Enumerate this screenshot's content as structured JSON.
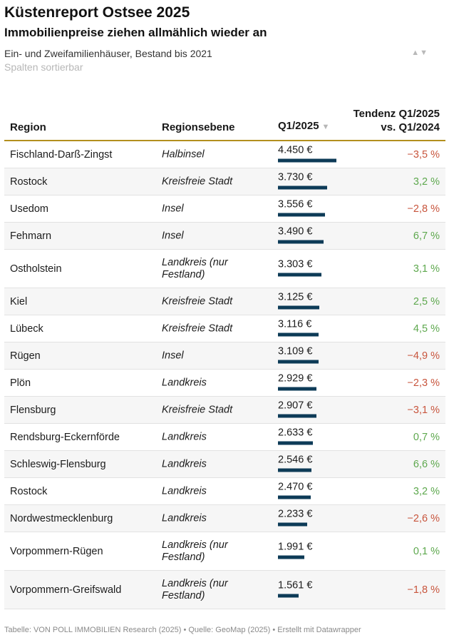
{
  "header": {
    "title": "Küstenreport Ostsee 2025",
    "subtitle": "Immobilienpreise ziehen allmählich wieder an",
    "description": "Ein- und Zweifamilienhäuser, Bestand bis 2021",
    "sort_note": "Spalten sortierbar",
    "sort_up_icon": "▲",
    "sort_down_icon": "▼"
  },
  "columns": {
    "region": "Region",
    "level": "Regionsebene",
    "q1": "Q1/2025",
    "q1_sort_icon": "▼",
    "trend": "Tendenz Q1/2025 vs. Q1/2024"
  },
  "colors": {
    "bar": "#0d3b57",
    "negative": "#c8553d",
    "positive": "#5ea84e",
    "header_rule": "#b38f1e"
  },
  "chart_data": {
    "type": "table",
    "value_max": 4450,
    "columns": [
      "Region",
      "Regionsebene",
      "Q1/2025",
      "Tendenz Q1/2025 vs. Q1/2024"
    ],
    "rows": [
      {
        "region": "Fischland-Darß-Zingst",
        "level": "Halbinsel",
        "value": 4450,
        "value_label": "4.450 €",
        "trend": "−3,5 %",
        "trend_sign": "neg"
      },
      {
        "region": "Rostock",
        "level": "Kreisfreie Stadt",
        "value": 3730,
        "value_label": "3.730 €",
        "trend": "3,2 %",
        "trend_sign": "pos"
      },
      {
        "region": "Usedom",
        "level": "Insel",
        "value": 3556,
        "value_label": "3.556 €",
        "trend": "−2,8 %",
        "trend_sign": "neg"
      },
      {
        "region": "Fehmarn",
        "level": "Insel",
        "value": 3490,
        "value_label": "3.490 €",
        "trend": "6,7 %",
        "trend_sign": "pos"
      },
      {
        "region": "Ostholstein",
        "level": "Landkreis (nur Festland)",
        "value": 3303,
        "value_label": "3.303 €",
        "trend": "3,1 %",
        "trend_sign": "pos"
      },
      {
        "region": "Kiel",
        "level": "Kreisfreie Stadt",
        "value": 3125,
        "value_label": "3.125 €",
        "trend": "2,5 %",
        "trend_sign": "pos"
      },
      {
        "region": "Lübeck",
        "level": "Kreisfreie Stadt",
        "value": 3116,
        "value_label": "3.116 €",
        "trend": "4,5 %",
        "trend_sign": "pos"
      },
      {
        "region": "Rügen",
        "level": "Insel",
        "value": 3109,
        "value_label": "3.109 €",
        "trend": "−4,9 %",
        "trend_sign": "neg"
      },
      {
        "region": "Plön",
        "level": "Landkreis",
        "value": 2929,
        "value_label": "2.929 €",
        "trend": "−2,3 %",
        "trend_sign": "neg"
      },
      {
        "region": "Flensburg",
        "level": "Kreisfreie Stadt",
        "value": 2907,
        "value_label": "2.907 €",
        "trend": "−3,1 %",
        "trend_sign": "neg"
      },
      {
        "region": "Rendsburg-Eckernförde",
        "level": "Landkreis",
        "value": 2633,
        "value_label": "2.633 €",
        "trend": "0,7 %",
        "trend_sign": "pos"
      },
      {
        "region": "Schleswig-Flensburg",
        "level": "Landkreis",
        "value": 2546,
        "value_label": "2.546 €",
        "trend": "6,6 %",
        "trend_sign": "pos"
      },
      {
        "region": "Rostock",
        "level": "Landkreis",
        "value": 2470,
        "value_label": "2.470 €",
        "trend": "3,2 %",
        "trend_sign": "pos"
      },
      {
        "region": "Nordwestmecklenburg",
        "level": "Landkreis",
        "value": 2233,
        "value_label": "2.233 €",
        "trend": "−2,6 %",
        "trend_sign": "neg"
      },
      {
        "region": "Vorpommern-Rügen",
        "level": "Landkreis (nur Festland)",
        "value": 1991,
        "value_label": "1.991 €",
        "trend": "0,1 %",
        "trend_sign": "pos"
      },
      {
        "region": "Vorpommern-Greifswald",
        "level": "Landkreis (nur Festland)",
        "value": 1561,
        "value_label": "1.561 €",
        "trend": "−1,8 %",
        "trend_sign": "neg"
      }
    ]
  },
  "footer": "Tabelle: VON POLL IMMOBILIEN Research (2025) • Quelle: GeoMap (2025) • Erstellt mit Datawrapper"
}
